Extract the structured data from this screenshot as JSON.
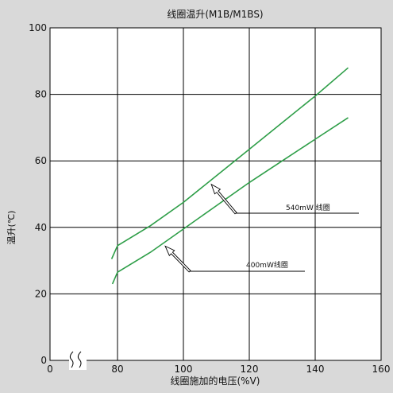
{
  "chart_data": {
    "type": "line",
    "title": "线圈温升(M1B/M1BS)",
    "xlabel": "线圈施加的电压(%V)",
    "ylabel": "温升(℃)",
    "xlim": [
      0,
      160
    ],
    "ylim": [
      0,
      100
    ],
    "x_ticks": [
      0,
      80,
      100,
      120,
      140,
      160
    ],
    "y_ticks": [
      0,
      20,
      40,
      60,
      80,
      100
    ],
    "axis_break": "0–80",
    "grid": true,
    "line_color": "#2e9e48",
    "series": [
      {
        "name": "540mW 线圈",
        "points": [
          [
            73,
            30.5
          ],
          [
            80,
            34.5
          ],
          [
            90,
            40.5
          ],
          [
            100,
            47.5
          ],
          [
            110,
            55.5
          ],
          [
            120,
            63.5
          ],
          [
            130,
            71.5
          ],
          [
            140,
            79.5
          ],
          [
            150,
            88
          ]
        ]
      },
      {
        "name": "400mW线圈",
        "points": [
          [
            74,
            23
          ],
          [
            80,
            26.5
          ],
          [
            90,
            32.5
          ],
          [
            100,
            39.5
          ],
          [
            110,
            46.5
          ],
          [
            120,
            53.5
          ],
          [
            130,
            60
          ],
          [
            140,
            66.5
          ],
          [
            150,
            73
          ]
        ]
      }
    ]
  }
}
